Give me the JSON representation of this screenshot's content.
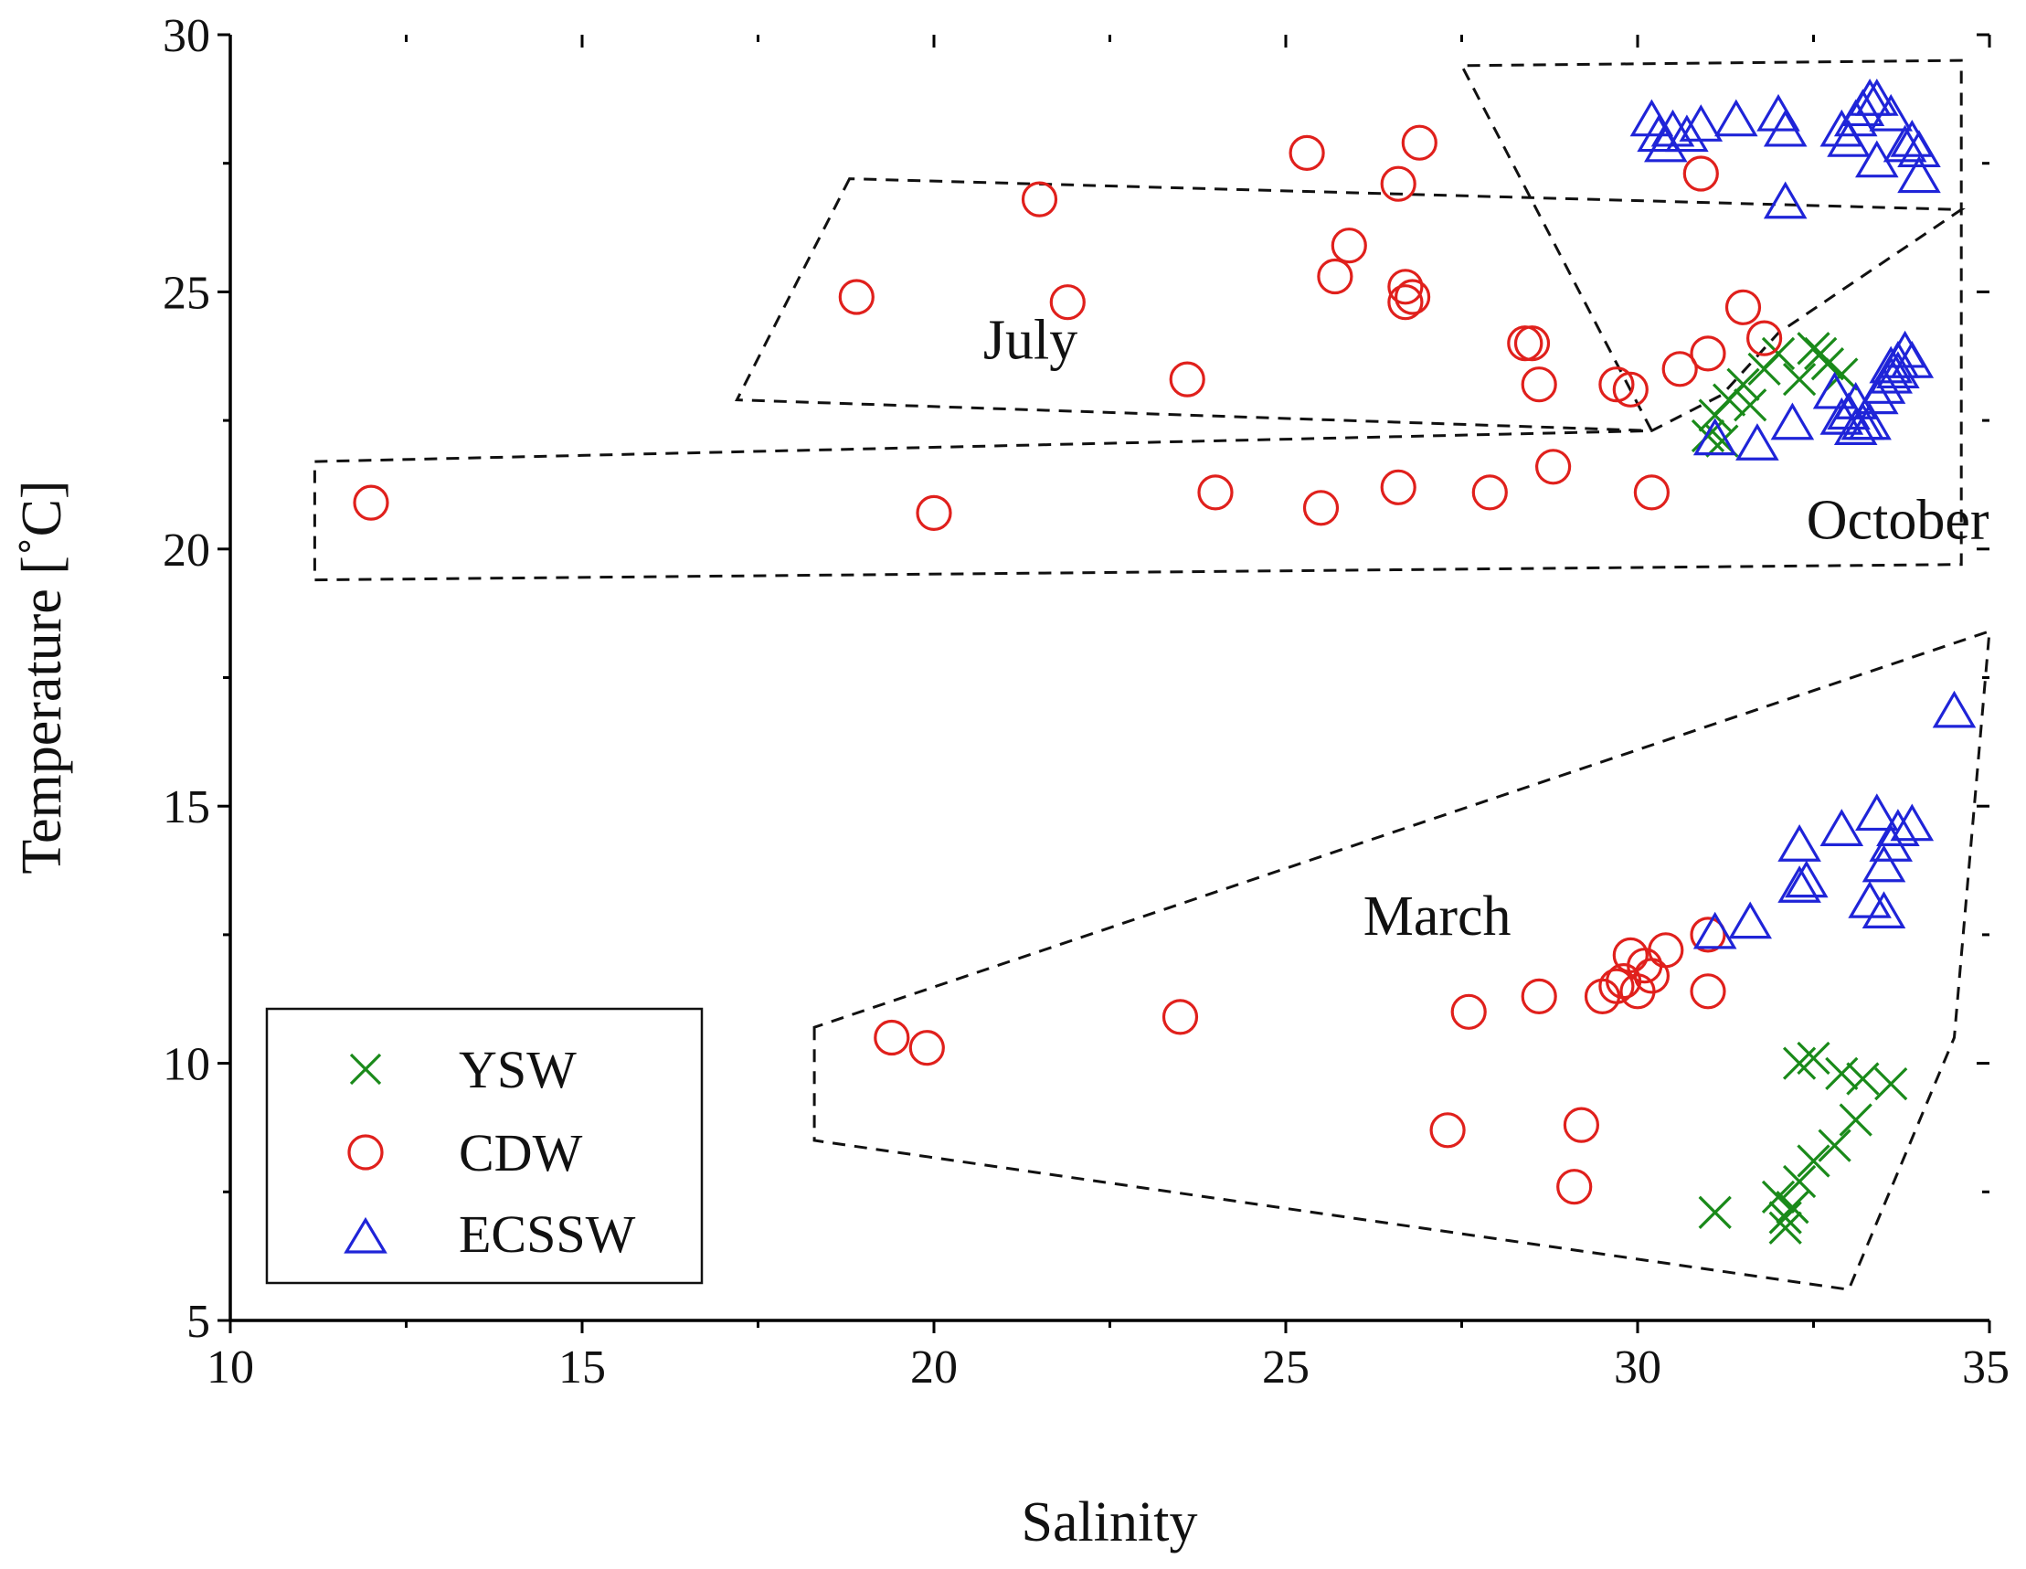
{
  "chart_data": {
    "type": "scatter",
    "title": "",
    "xlabel": "Salinity",
    "ylabel": "Temperature [˚C]",
    "xlim": [
      10,
      35
    ],
    "ylim": [
      5,
      30
    ],
    "xticks": [
      10,
      15,
      20,
      25,
      30,
      35
    ],
    "yticks": [
      5,
      10,
      15,
      20,
      25,
      30
    ],
    "xtick_labels": [
      "10",
      "15",
      "20",
      "25",
      "30",
      "35"
    ],
    "ytick_labels": [
      "5",
      "10",
      "15",
      "20",
      "25",
      "30"
    ],
    "legend_position": "bottom-left",
    "series": [
      {
        "name": "YSW",
        "marker": "x",
        "color": "#1a8a1a",
        "points": [
          [
            31.0,
            22.2
          ],
          [
            31.1,
            22.6
          ],
          [
            31.3,
            22.9
          ],
          [
            31.5,
            23.2
          ],
          [
            31.8,
            23.5
          ],
          [
            31.6,
            22.8
          ],
          [
            32.0,
            23.8
          ],
          [
            32.3,
            23.3
          ],
          [
            32.5,
            23.9
          ],
          [
            32.7,
            23.6
          ],
          [
            32.9,
            23.4
          ],
          [
            32.6,
            23.8
          ],
          [
            31.2,
            22.1
          ],
          [
            31.1,
            7.1
          ],
          [
            32.0,
            7.4
          ],
          [
            32.1,
            6.8
          ],
          [
            32.2,
            7.2
          ],
          [
            32.3,
            7.7
          ],
          [
            32.5,
            8.1
          ],
          [
            32.8,
            8.4
          ],
          [
            33.1,
            8.9
          ],
          [
            33.2,
            9.7
          ],
          [
            33.6,
            9.6
          ],
          [
            32.9,
            9.8
          ],
          [
            32.3,
            10.0
          ],
          [
            32.5,
            10.1
          ],
          [
            32.1,
            7.0
          ]
        ]
      },
      {
        "name": "CDW",
        "marker": "o",
        "color": "#e0201c",
        "points": [
          [
            18.9,
            24.9
          ],
          [
            21.5,
            26.8
          ],
          [
            21.9,
            24.8
          ],
          [
            23.6,
            23.3
          ],
          [
            25.3,
            27.7
          ],
          [
            25.7,
            25.3
          ],
          [
            25.9,
            25.9
          ],
          [
            26.6,
            27.1
          ],
          [
            26.7,
            25.1
          ],
          [
            26.7,
            24.8
          ],
          [
            26.8,
            24.9
          ],
          [
            26.9,
            27.9
          ],
          [
            28.4,
            24.0
          ],
          [
            28.5,
            24.0
          ],
          [
            28.6,
            23.2
          ],
          [
            29.7,
            23.2
          ],
          [
            29.9,
            23.1
          ],
          [
            30.6,
            23.5
          ],
          [
            31.0,
            23.8
          ],
          [
            30.9,
            27.3
          ],
          [
            31.5,
            24.7
          ],
          [
            31.8,
            24.1
          ],
          [
            12.0,
            20.9
          ],
          [
            20.0,
            20.7
          ],
          [
            24.0,
            21.1
          ],
          [
            25.5,
            20.8
          ],
          [
            26.6,
            21.2
          ],
          [
            27.9,
            21.1
          ],
          [
            28.8,
            21.6
          ],
          [
            30.2,
            21.1
          ],
          [
            19.4,
            10.5
          ],
          [
            19.9,
            10.3
          ],
          [
            23.5,
            10.9
          ],
          [
            27.3,
            8.7
          ],
          [
            27.6,
            11.0
          ],
          [
            28.6,
            11.3
          ],
          [
            29.1,
            7.6
          ],
          [
            29.2,
            8.8
          ],
          [
            29.5,
            11.3
          ],
          [
            29.7,
            11.5
          ],
          [
            29.8,
            11.6
          ],
          [
            30.0,
            11.4
          ],
          [
            29.9,
            12.1
          ],
          [
            30.1,
            11.9
          ],
          [
            30.2,
            11.7
          ],
          [
            30.4,
            12.2
          ],
          [
            31.0,
            11.4
          ],
          [
            31.0,
            12.5
          ]
        ]
      },
      {
        "name": "ECSSW",
        "marker": "^",
        "color": "#1f24d8",
        "points": [
          [
            30.2,
            28.3
          ],
          [
            30.3,
            28.0
          ],
          [
            30.4,
            27.8
          ],
          [
            30.5,
            28.1
          ],
          [
            30.7,
            28.0
          ],
          [
            30.9,
            28.2
          ],
          [
            31.4,
            28.3
          ],
          [
            32.0,
            28.4
          ],
          [
            32.1,
            28.1
          ],
          [
            32.1,
            26.7
          ],
          [
            32.9,
            28.1
          ],
          [
            33.0,
            27.9
          ],
          [
            33.1,
            28.3
          ],
          [
            33.2,
            28.5
          ],
          [
            33.3,
            28.7
          ],
          [
            33.4,
            28.7
          ],
          [
            33.4,
            27.5
          ],
          [
            33.6,
            28.4
          ],
          [
            33.8,
            27.8
          ],
          [
            33.9,
            27.9
          ],
          [
            34.0,
            27.7
          ],
          [
            34.0,
            27.2
          ],
          [
            31.1,
            22.1
          ],
          [
            31.7,
            22.0
          ],
          [
            32.2,
            22.4
          ],
          [
            32.8,
            23.0
          ],
          [
            32.9,
            22.5
          ],
          [
            33.0,
            22.6
          ],
          [
            33.1,
            22.8
          ],
          [
            33.1,
            22.3
          ],
          [
            33.2,
            22.4
          ],
          [
            33.3,
            22.4
          ],
          [
            33.4,
            22.9
          ],
          [
            33.5,
            23.1
          ],
          [
            33.6,
            23.3
          ],
          [
            33.6,
            23.5
          ],
          [
            33.7,
            23.6
          ],
          [
            33.8,
            23.8
          ],
          [
            33.9,
            23.6
          ],
          [
            33.7,
            23.4
          ],
          [
            31.1,
            12.5
          ],
          [
            31.6,
            12.7
          ],
          [
            32.3,
            13.4
          ],
          [
            32.3,
            14.2
          ],
          [
            32.4,
            13.5
          ],
          [
            32.9,
            14.5
          ],
          [
            33.3,
            13.1
          ],
          [
            33.4,
            14.8
          ],
          [
            33.5,
            12.9
          ],
          [
            33.5,
            13.8
          ],
          [
            33.6,
            14.2
          ],
          [
            33.7,
            14.5
          ],
          [
            33.9,
            14.6
          ],
          [
            34.5,
            16.8
          ]
        ]
      }
    ],
    "regions": [
      {
        "label": "July",
        "label_pos": [
          20.7,
          23.7
        ],
        "polygon": [
          [
            18.8,
            27.2
          ],
          [
            17.2,
            22.9
          ],
          [
            30.2,
            22.3
          ],
          [
            31.2,
            23.0
          ],
          [
            32.0,
            24.2
          ],
          [
            34.6,
            26.6
          ]
        ]
      },
      {
        "label": "October",
        "label_pos": [
          32.4,
          20.2
        ],
        "polygon": [
          [
            11.2,
            21.7
          ],
          [
            30.2,
            22.3
          ],
          [
            27.5,
            29.4
          ],
          [
            34.6,
            29.5
          ],
          [
            34.6,
            19.7
          ],
          [
            11.2,
            19.4
          ]
        ]
      },
      {
        "label": "March",
        "label_pos": [
          26.1,
          12.5
        ],
        "polygon": [
          [
            18.3,
            10.7
          ],
          [
            18.3,
            8.5
          ],
          [
            33.0,
            5.6
          ],
          [
            34.5,
            10.5
          ],
          [
            35.0,
            18.4
          ]
        ]
      }
    ],
    "legend": [
      "YSW",
      "CDW",
      "ECSSW"
    ]
  }
}
